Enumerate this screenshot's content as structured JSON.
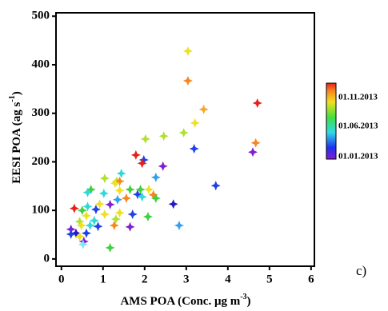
{
  "chart_data": {
    "type": "scatter",
    "xlabel": {
      "text": "AMS POA  (Conc. μg m",
      "sup": "-3",
      "end": ")"
    },
    "ylabel": {
      "text": "EESI POA (ag s",
      "sup": "-1",
      "end": ")"
    },
    "annotation": "c)",
    "colorbar_labels": [
      "01.11.2013",
      "01.06.2013",
      "01.01.2013"
    ],
    "xlim": [
      -0.13,
      6.08
    ],
    "ylim": [
      -15,
      507
    ],
    "xticks": [
      0,
      1,
      2,
      3,
      4,
      5,
      6
    ],
    "yticks": [
      0,
      100,
      200,
      300,
      400,
      500
    ],
    "series": [
      {
        "x": [
          3.04,
          3.04,
          4.71,
          3.42,
          3.21,
          2.94,
          4.67,
          2.46,
          2.02,
          3.19,
          4.6,
          1.79,
          1.98,
          1.94,
          2.44,
          3.71,
          2.27,
          1.44,
          1.33,
          1.04,
          0.71,
          0.63,
          1.02,
          1.4,
          1.29,
          1.65,
          1.9,
          1.83,
          1.94,
          2.1,
          2.21,
          2.27,
          1.4,
          1.56,
          1.17,
          1.35,
          0.92,
          0.31,
          0.63,
          0.83,
          0.5,
          1.04,
          0.6,
          1.4,
          1.71,
          2.08,
          2.69,
          1.31,
          0.79,
          0.44,
          0.88,
          0.69,
          0.48,
          1.65,
          1.27,
          2.83,
          0.23,
          0.35,
          0.6,
          0.44,
          0.54,
          0.52,
          1.17,
          0.23
        ],
        "values": [
          428,
          367,
          321,
          308,
          280,
          260,
          239,
          253,
          247,
          227,
          220,
          214,
          204,
          197,
          191,
          151,
          168,
          176,
          160,
          166,
          143,
          137,
          135,
          160,
          156,
          143,
          143,
          133,
          128,
          143,
          132,
          125,
          141,
          125,
          112,
          122,
          113,
          104,
          108,
          102,
          100,
          92,
          89,
          95,
          92,
          87,
          113,
          82,
          79,
          77,
          67,
          69,
          69,
          66,
          69,
          69,
          61,
          53,
          53,
          46,
          36,
          30,
          23,
          51
        ],
        "colors": [
          "#f0e020",
          "#f7861c",
          "#e8201c",
          "#f5a830",
          "#f0e020",
          "#b0e030",
          "#f7861c",
          "#b0e030",
          "#b0e030",
          "#2040e8",
          "#8020d0",
          "#e8201c",
          "#2040e8",
          "#e8201c",
          "#8020d0",
          "#2040e8",
          "#30a0f0",
          "#30d8d8",
          "#b0e030",
          "#b0e030",
          "#40d040",
          "#30d8d8",
          "#30d8d8",
          "#f7861c",
          "#f0e020",
          "#40d040",
          "#40d040",
          "#2040e8",
          "#30d8d8",
          "#f0e020",
          "#f7861c",
          "#40d040",
          "#f0e020",
          "#f7861c",
          "#8020d0",
          "#30a0f0",
          "#f0e020",
          "#e8201c",
          "#30d8d8",
          "#2040e8",
          "#40d040",
          "#f0e020",
          "#f0e020",
          "#f0e020",
          "#2040e8",
          "#40d040",
          "#2818c8",
          "#b0e030",
          "#30d8d8",
          "#b0e030",
          "#2040e8",
          "#30d8d8",
          "#f0e020",
          "#8020d0",
          "#f7861c",
          "#30a0f0",
          "#8020d0",
          "#2818c8",
          "#2040e8",
          "#f0e020",
          "#8020d0",
          "#80e8f0",
          "#40d040",
          "#2040e8"
        ]
      }
    ]
  }
}
